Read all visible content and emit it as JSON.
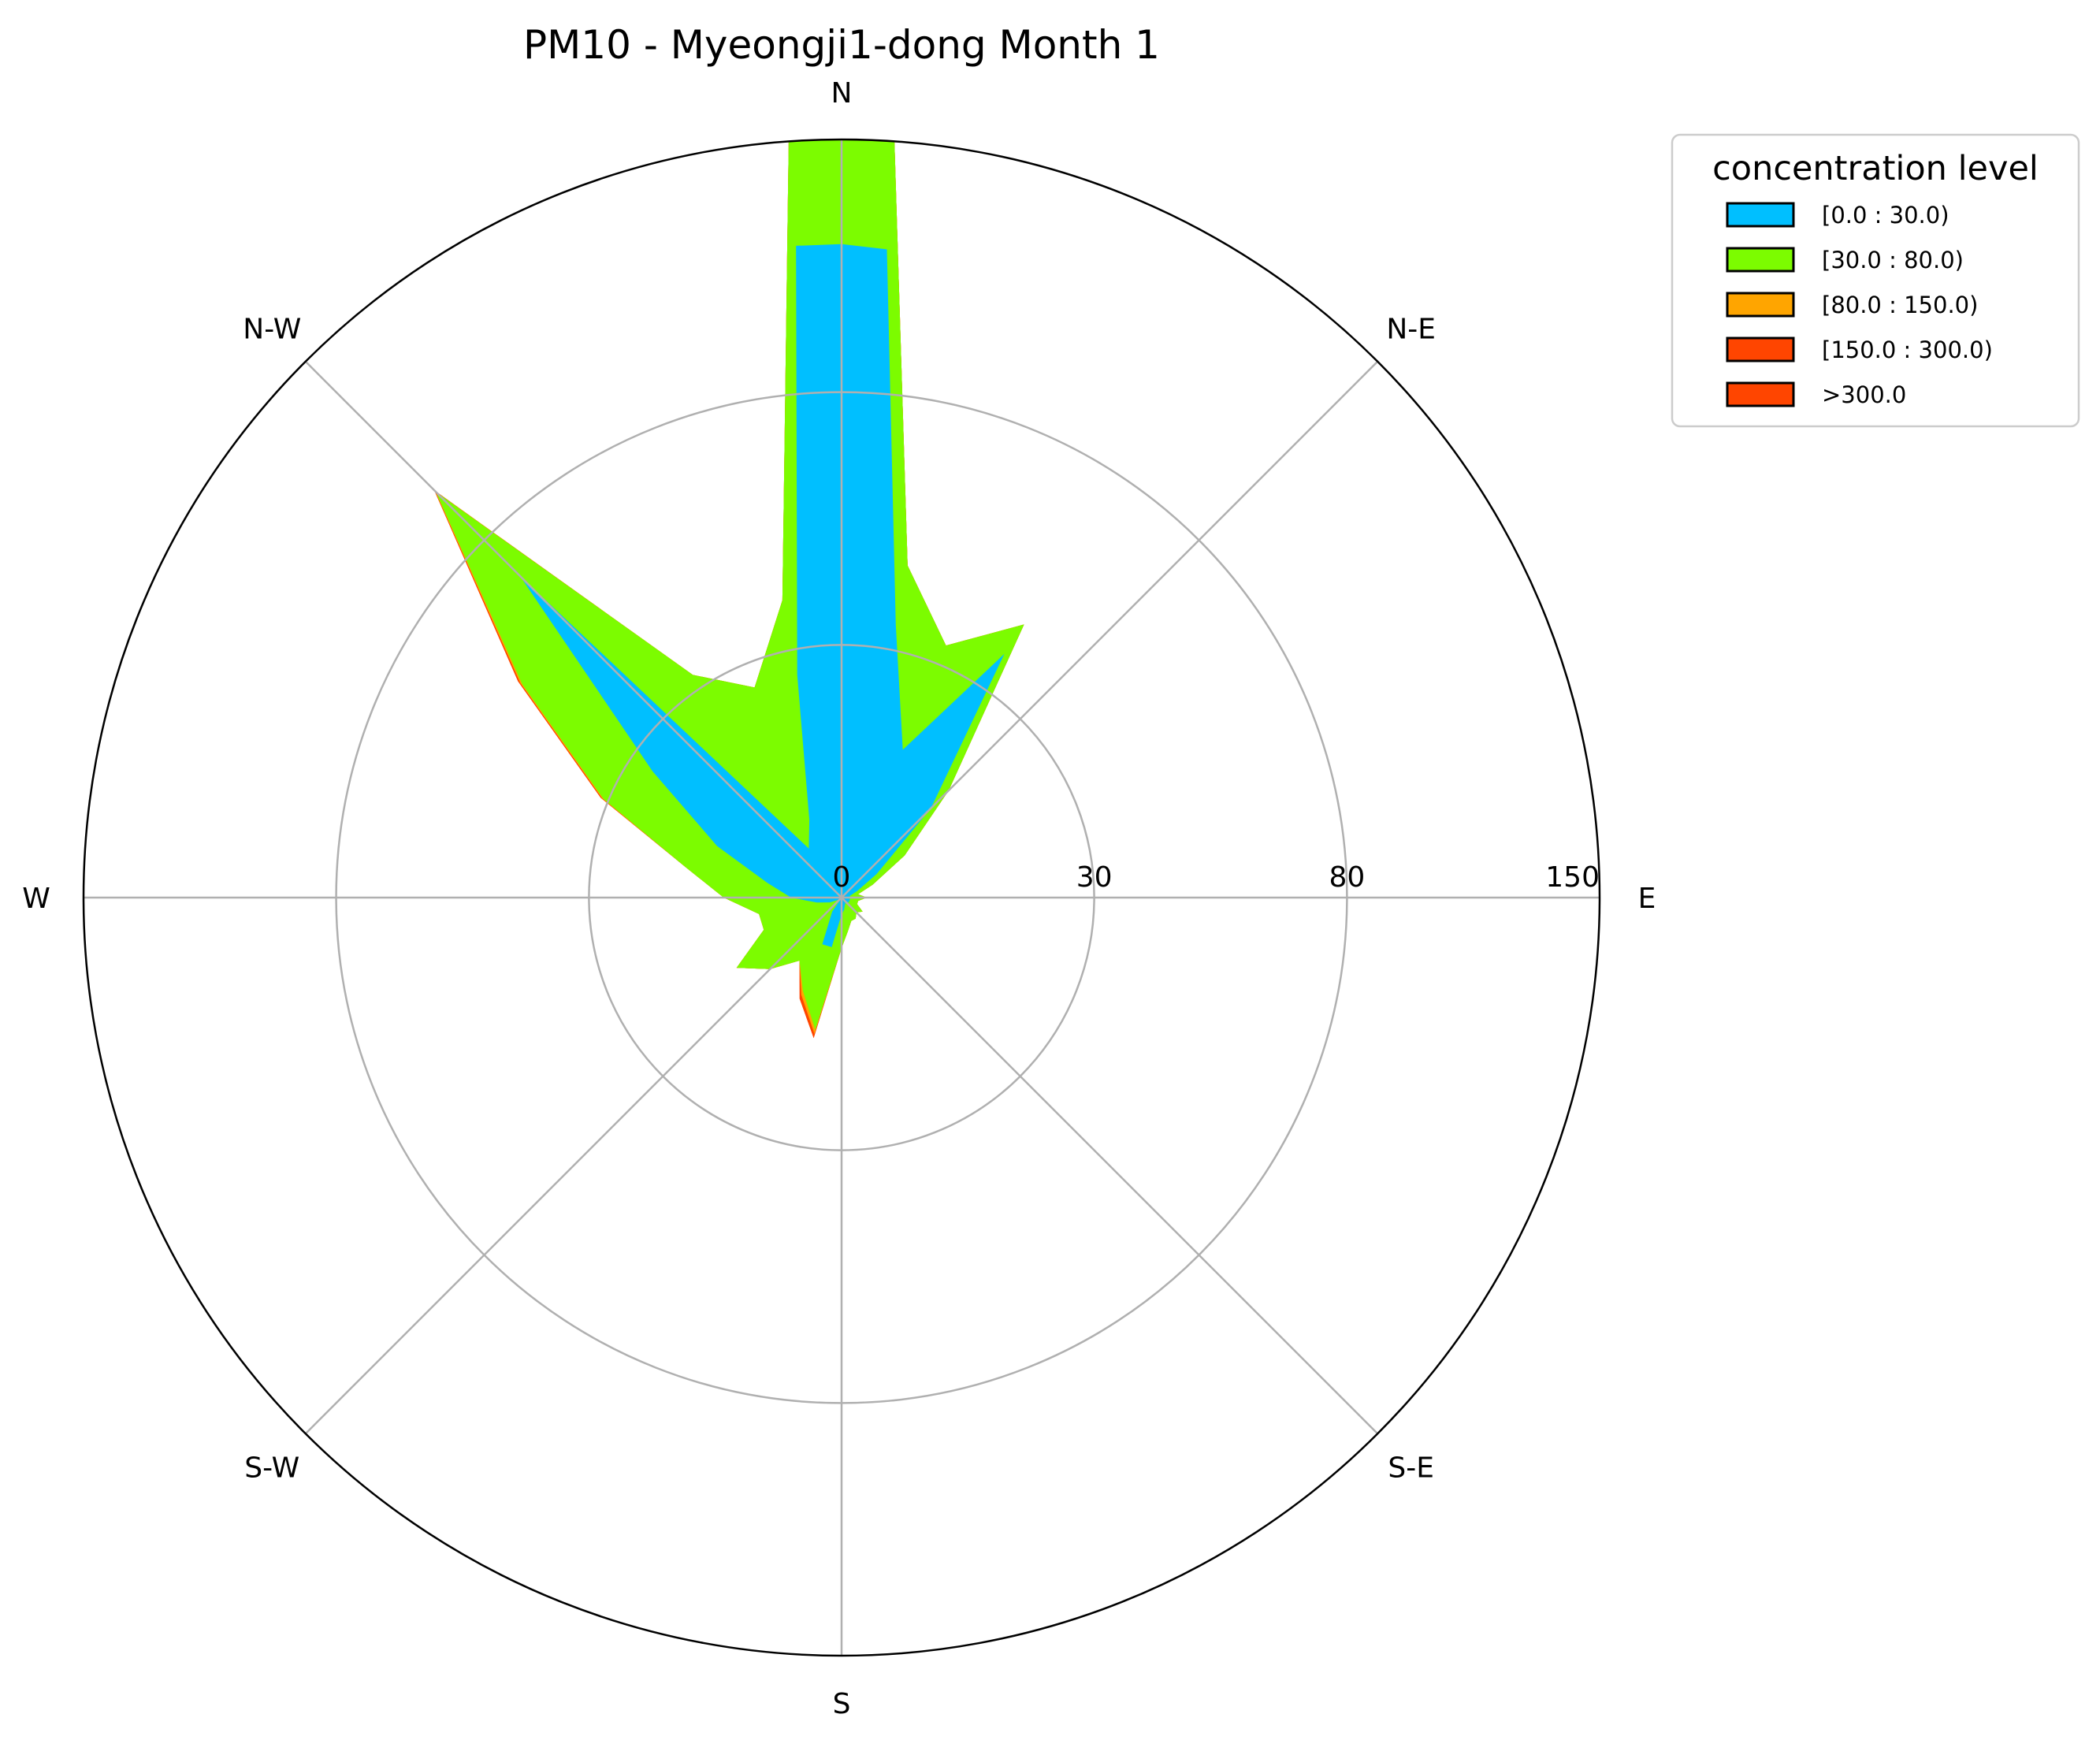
{
  "chart_data": {
    "type": "polar-area",
    "title": "PM10 - Myeongji1-dong Month 1",
    "directions": [
      "E",
      "N-E",
      "N",
      "N-W",
      "W",
      "S-W",
      "S",
      "S-E"
    ],
    "radial_ticks": [
      0,
      30,
      80,
      150
    ],
    "rlim": [
      0,
      150
    ],
    "theta_samples_deg": [
      0,
      11.25,
      22.5,
      33.75,
      45,
      56.25,
      67.5,
      78.75,
      86,
      90,
      94,
      101.25,
      112.5,
      123.75,
      135,
      146.25,
      157.5,
      168.75,
      180,
      191.25,
      202.5,
      213.75,
      225,
      236.25,
      247.5,
      258.75,
      270,
      281.25,
      292.5,
      303.75,
      315,
      326.25,
      337.5,
      348.75
    ],
    "series": [
      {
        "name": "[0.0 : 30.0)",
        "color": "#00bfff",
        "values": [
          1,
          1,
          2,
          5,
          15,
          38,
          19,
          35,
          120,
          121,
          121,
          27,
          10,
          7,
          70,
          27,
          16,
          9,
          6,
          3,
          1.5,
          0.5,
          0,
          2,
          6,
          6,
          2,
          1.5,
          1,
          0.8,
          0.8,
          1,
          1,
          1
        ]
      },
      {
        "name": "[30.0 : 80.0)",
        "color": "#7cfc00",
        "values": [
          3,
          2,
          4,
          9,
          18,
          45,
          34,
          47,
          150,
          150,
          150,
          40,
          27,
          33,
          99,
          56,
          31,
          19,
          14,
          10,
          10,
          15,
          12,
          9,
          12,
          16,
          6,
          4,
          3,
          3,
          2.5,
          3,
          2,
          2
        ]
      },
      {
        "name": "[80.0 : 150.0)",
        "color": "#ffa500",
        "values": [
          3,
          2,
          4,
          9,
          18,
          45,
          34,
          47,
          150,
          150,
          150,
          40,
          27,
          33,
          99.3,
          56.5,
          31.3,
          19,
          14,
          10,
          10,
          15,
          12,
          9,
          12.5,
          16.5,
          6,
          4,
          3,
          3,
          2.5,
          3,
          2,
          2
        ]
      },
      {
        "name": "[150.0 : 300.0)",
        "color": "#ff4500",
        "values": [
          3,
          2,
          4,
          9,
          18,
          45,
          34,
          47,
          150,
          150,
          150,
          40,
          27,
          33,
          99.6,
          57,
          31.6,
          19,
          14,
          10,
          10,
          15,
          12,
          9,
          13,
          17,
          6,
          4,
          3,
          3,
          2.5,
          3,
          2,
          2
        ]
      },
      {
        "name": ">300.0",
        "color": "#ff4500",
        "values": [
          3,
          2,
          4,
          9,
          18,
          45,
          34,
          47,
          150,
          150,
          150,
          40,
          27,
          33,
          99.6,
          57,
          31.6,
          19,
          14,
          10,
          10,
          15,
          12,
          9,
          13,
          17,
          6,
          4,
          3,
          3,
          2.5,
          3,
          2,
          2
        ]
      }
    ],
    "legend": {
      "title": "concentration level",
      "placement": "top-right, outside plot"
    },
    "grid": true
  }
}
